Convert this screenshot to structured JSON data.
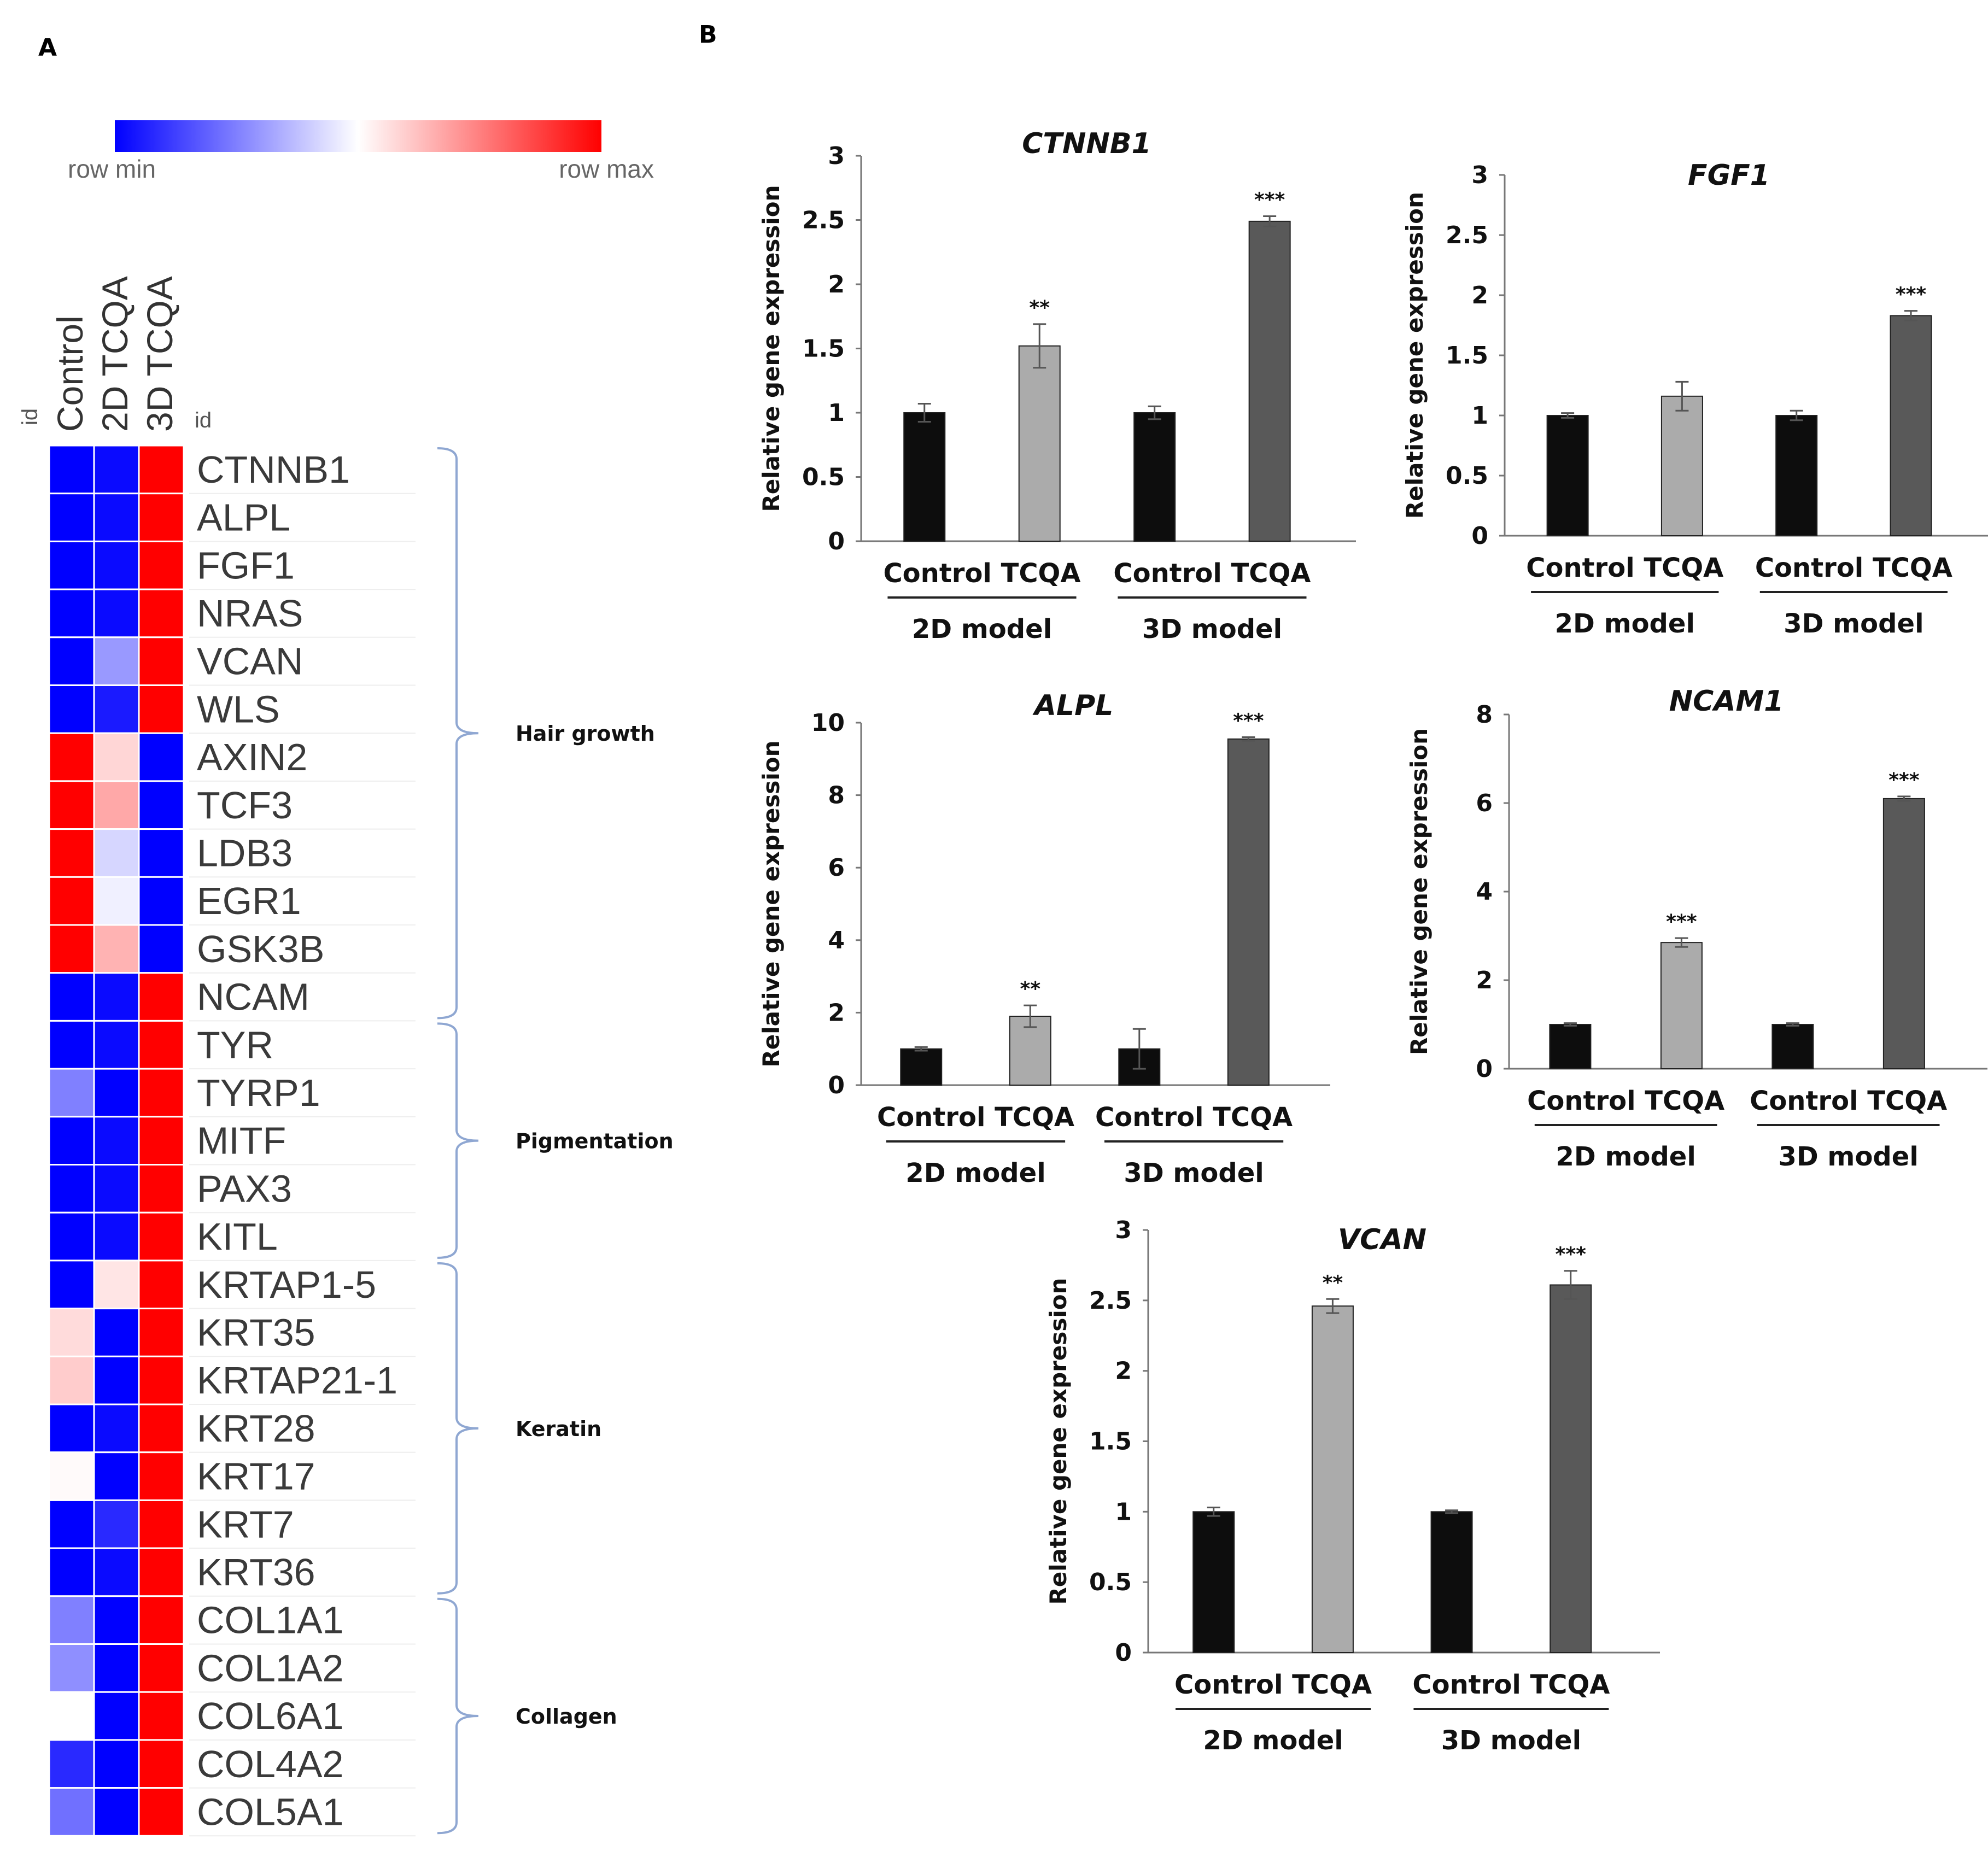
{
  "panel_labels": {
    "a": "A",
    "b": "B"
  },
  "colors": {
    "min": "#0000ff",
    "mid": "#ffffff",
    "max": "#ff0000",
    "bar_control": "#0d0d0d",
    "bar_tcqa_2d": "#ababab",
    "bar_tcqa_3d": "#595959",
    "bracket": "#8fa7d2"
  },
  "heatmap": {
    "scale_min_label": "row min",
    "scale_max_label": "row max",
    "id_label": "id",
    "columns": [
      "Control",
      "2D TCQA",
      "3D TCQA"
    ],
    "rows": [
      {
        "gene": "CTNNB1",
        "values": [
          0,
          0.02,
          1
        ]
      },
      {
        "gene": "ALPL",
        "values": [
          0,
          0.02,
          1
        ]
      },
      {
        "gene": "FGF1",
        "values": [
          0,
          0.02,
          1
        ]
      },
      {
        "gene": "NRAS",
        "values": [
          0,
          0.02,
          1
        ]
      },
      {
        "gene": "VCAN",
        "values": [
          0,
          0.3,
          1
        ]
      },
      {
        "gene": "WLS",
        "values": [
          0,
          0.05,
          1
        ]
      },
      {
        "gene": "AXIN2",
        "values": [
          1,
          0.58,
          0
        ]
      },
      {
        "gene": "TCF3",
        "values": [
          1,
          0.67,
          0
        ]
      },
      {
        "gene": "LDB3",
        "values": [
          1,
          0.42,
          0
        ]
      },
      {
        "gene": "EGR1",
        "values": [
          1,
          0.47,
          0
        ]
      },
      {
        "gene": "GSK3B",
        "values": [
          1,
          0.65,
          0
        ]
      },
      {
        "gene": "NCAM",
        "values": [
          0,
          0.02,
          1
        ]
      },
      {
        "gene": "TYR",
        "values": [
          0,
          0.02,
          1
        ]
      },
      {
        "gene": "TYRP1",
        "values": [
          0.25,
          0,
          1
        ]
      },
      {
        "gene": "MITF",
        "values": [
          0,
          0.02,
          1
        ]
      },
      {
        "gene": "PAX3",
        "values": [
          0,
          0.02,
          1
        ]
      },
      {
        "gene": "KITL",
        "values": [
          0,
          0.02,
          1
        ]
      },
      {
        "gene": "KRTAP1-5",
        "values": [
          0,
          0.55,
          1
        ]
      },
      {
        "gene": "KRT35",
        "values": [
          0.57,
          0,
          1
        ]
      },
      {
        "gene": "KRTAP21-1",
        "values": [
          0.6,
          0,
          1
        ]
      },
      {
        "gene": "KRT28",
        "values": [
          0,
          0.02,
          1
        ]
      },
      {
        "gene": "KRT17",
        "values": [
          0.51,
          0,
          1
        ]
      },
      {
        "gene": "KRT7",
        "values": [
          0,
          0.08,
          1
        ]
      },
      {
        "gene": "KRT36",
        "values": [
          0,
          0.02,
          1
        ]
      },
      {
        "gene": "COL1A1",
        "values": [
          0.25,
          0,
          1
        ]
      },
      {
        "gene": "COL1A2",
        "values": [
          0.28,
          0,
          1
        ]
      },
      {
        "gene": "COL6A1",
        "values": [
          0.5,
          0,
          1
        ]
      },
      {
        "gene": "COL4A2",
        "values": [
          0.08,
          0,
          1
        ]
      },
      {
        "gene": "COL5A1",
        "values": [
          0.22,
          0,
          1
        ]
      }
    ],
    "groups": [
      {
        "label": "Hair growth",
        "first_row": 0,
        "last_row": 11
      },
      {
        "label": "Pigmentation",
        "first_row": 12,
        "last_row": 16
      },
      {
        "label": "Keratin",
        "first_row": 17,
        "last_row": 23
      },
      {
        "label": "Collagen",
        "first_row": 24,
        "last_row": 28
      }
    ]
  },
  "chart_data": [
    {
      "type": "bar",
      "title": "CTNNB1",
      "ylabel": "Relative gene expression",
      "ylim": [
        0,
        3
      ],
      "yticks": [
        "0",
        "0.5",
        "1",
        "1.5",
        "2",
        "2.5",
        "3"
      ],
      "categories": [
        "Control",
        "TCQA",
        "Control",
        "TCQA"
      ],
      "groups": [
        "2D model",
        "3D model"
      ],
      "values": [
        1.0,
        1.52,
        1.0,
        2.49
      ],
      "errors": [
        0.07,
        0.17,
        0.05,
        0.04
      ],
      "significance": [
        "",
        "**",
        "",
        "***"
      ]
    },
    {
      "type": "bar",
      "title": "FGF1",
      "ylabel": "Relative gene expression",
      "ylim": [
        0,
        3
      ],
      "yticks": [
        "0",
        "0.5",
        "1",
        "1.5",
        "2",
        "2.5",
        "3"
      ],
      "categories": [
        "Control",
        "TCQA",
        "Control",
        "TCQA"
      ],
      "groups": [
        "2D model",
        "3D model"
      ],
      "values": [
        1.0,
        1.16,
        1.0,
        1.83
      ],
      "errors": [
        0.02,
        0.12,
        0.04,
        0.04
      ],
      "significance": [
        "",
        "",
        "",
        "***"
      ]
    },
    {
      "type": "bar",
      "title": "ALPL",
      "ylabel": "Relative gene expression",
      "ylim": [
        0,
        10
      ],
      "yticks": [
        "0",
        "2",
        "4",
        "6",
        "8",
        "10"
      ],
      "categories": [
        "Control",
        "TCQA",
        "Control",
        "TCQA"
      ],
      "groups": [
        "2D model",
        "3D model"
      ],
      "values": [
        1.0,
        1.9,
        1.0,
        9.55
      ],
      "errors": [
        0.05,
        0.3,
        0.55,
        0.05
      ],
      "significance": [
        "",
        "**",
        "",
        "***"
      ]
    },
    {
      "type": "bar",
      "title": "NCAM1",
      "ylabel": "Relative gene expression",
      "ylim": [
        0,
        8
      ],
      "yticks": [
        "0",
        "2",
        "4",
        "6",
        "8"
      ],
      "categories": [
        "Control",
        "TCQA",
        "Control",
        "TCQA"
      ],
      "groups": [
        "2D model",
        "3D model"
      ],
      "values": [
        1.0,
        2.85,
        1.0,
        6.1
      ],
      "errors": [
        0.03,
        0.1,
        0.03,
        0.05
      ],
      "significance": [
        "",
        "***",
        "",
        "***"
      ]
    },
    {
      "type": "bar",
      "title": "VCAN",
      "ylabel": "Relative gene expression",
      "ylim": [
        0,
        3
      ],
      "yticks": [
        "0",
        "0.5",
        "1",
        "1.5",
        "2",
        "2.5",
        "3"
      ],
      "categories": [
        "Control",
        "TCQA",
        "Control",
        "TCQA"
      ],
      "groups": [
        "2D model",
        "3D model"
      ],
      "values": [
        1.0,
        2.46,
        1.0,
        2.61
      ],
      "errors": [
        0.03,
        0.05,
        0.01,
        0.1
      ],
      "significance": [
        "",
        "**",
        "",
        "***"
      ]
    }
  ]
}
